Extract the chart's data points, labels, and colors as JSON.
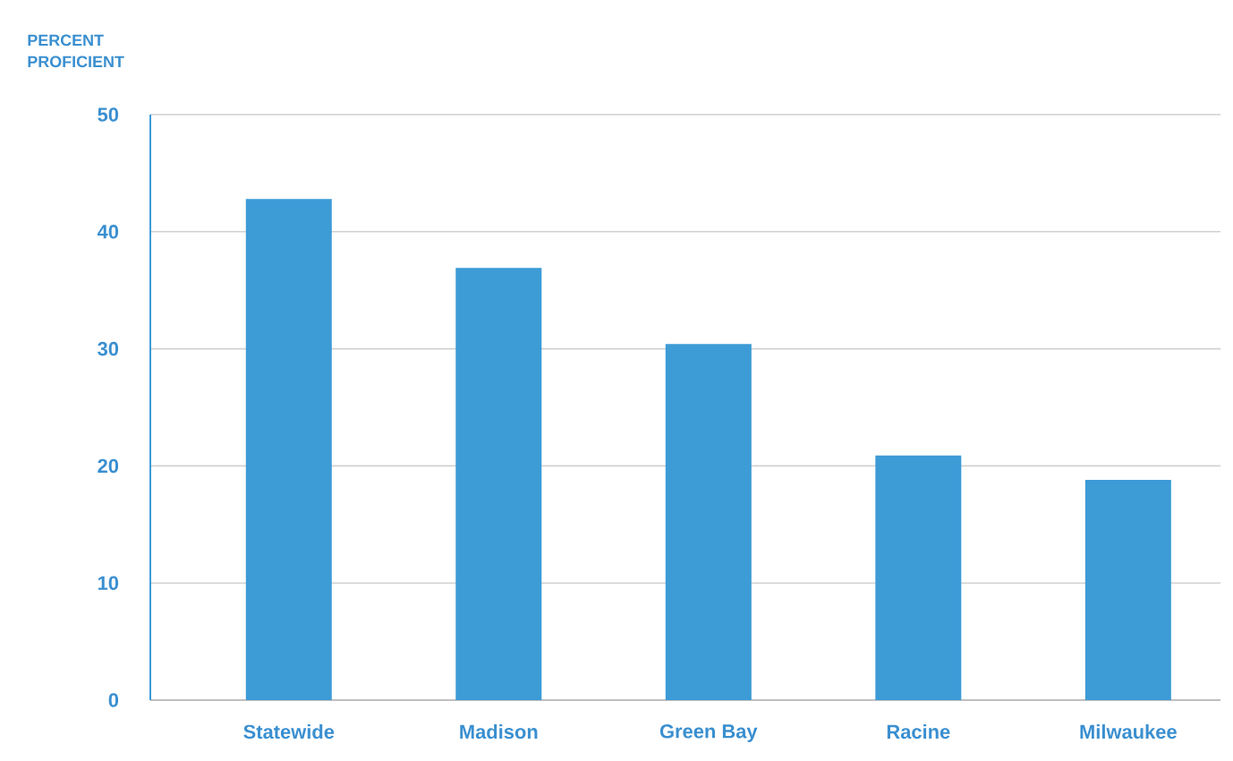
{
  "chart_data": {
    "type": "bar",
    "ylabel": "PERCENT PROFICIENT",
    "categories": [
      "Statewide",
      "Madison",
      "Green Bay",
      "Racine",
      "Milwaukee"
    ],
    "values": [
      42.8,
      36.9,
      30.4,
      20.9,
      18.8
    ],
    "color": "#3d9bd6",
    "ylim": [
      0,
      50
    ],
    "yticks": [
      0,
      10,
      20,
      30,
      40,
      50
    ],
    "grid": "y"
  }
}
